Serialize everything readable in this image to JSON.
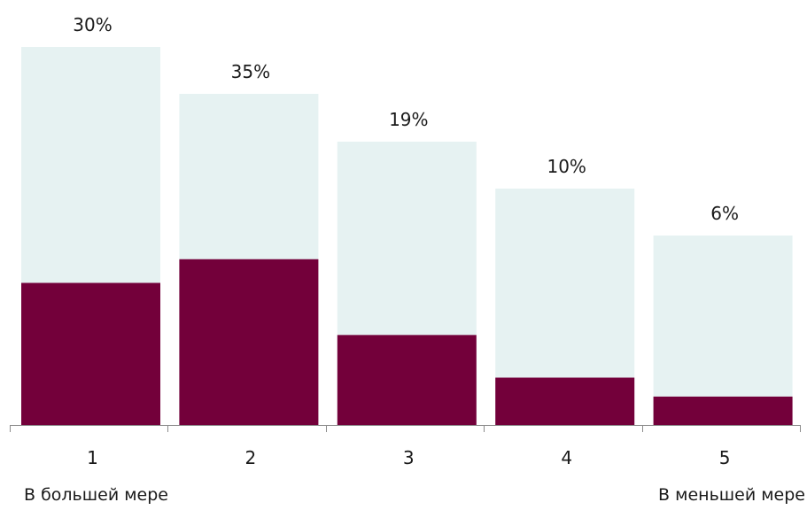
{
  "chart_data": {
    "type": "bar",
    "categories": [
      "1",
      "2",
      "3",
      "4",
      "5"
    ],
    "series": [
      {
        "values": [
          30,
          35,
          19,
          10,
          6
        ],
        "color": "#73003a"
      }
    ],
    "value_labels": [
      "30%",
      "35%",
      "19%",
      "10%",
      "6%"
    ],
    "ylim": [
      0,
      40
    ],
    "background_bars_color": "#e6f2f2",
    "grid": false,
    "legend": "none",
    "scale_low_label": "В большей мере",
    "scale_high_label": "В меньшей мере"
  }
}
